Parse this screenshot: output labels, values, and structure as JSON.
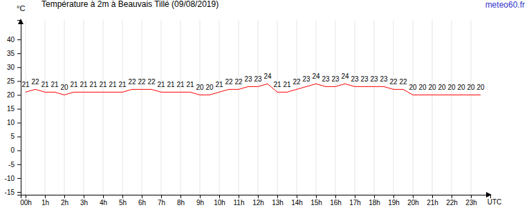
{
  "chart_data": {
    "type": "line",
    "title": "Température à 2m à Beauvais Tillé (09/08/2019)",
    "source": "meteo60.fr",
    "y_label": "°C",
    "x_label": "UTC",
    "x": [
      0,
      0.5,
      1,
      1.5,
      2,
      2.5,
      3,
      3.5,
      4,
      4.5,
      5,
      5.5,
      6,
      6.5,
      7,
      7.5,
      8,
      8.5,
      9,
      9.5,
      10,
      10.5,
      11,
      11.5,
      12,
      12.5,
      13,
      13.5,
      14,
      14.5,
      15,
      15.5,
      16,
      16.5,
      17,
      17.5,
      18,
      18.5,
      19,
      19.5,
      20,
      20.5,
      21,
      21.5,
      22,
      22.5,
      23,
      23.5
    ],
    "values": [
      21,
      22,
      21,
      21,
      20,
      21,
      21,
      21,
      21,
      21,
      21,
      22,
      22,
      22,
      21,
      21,
      21,
      21,
      20,
      20,
      21,
      22,
      22,
      23,
      23,
      24,
      21,
      21,
      22,
      23,
      24,
      23,
      23,
      24,
      23,
      23,
      23,
      23,
      22,
      22,
      20,
      20,
      20,
      20,
      20,
      20,
      20,
      20
    ],
    "color": "#ff0000",
    "xlim": [
      -0.25,
      24
    ],
    "xticks": [
      {
        "value": 0,
        "label": "00h"
      },
      {
        "value": 1,
        "label": "1h"
      },
      {
        "value": 2,
        "label": "2h"
      },
      {
        "value": 3,
        "label": "3h"
      },
      {
        "value": 4,
        "label": "4h"
      },
      {
        "value": 5,
        "label": "5h"
      },
      {
        "value": 6,
        "label": "6h"
      },
      {
        "value": 7,
        "label": "7h"
      },
      {
        "value": 8,
        "label": "8h"
      },
      {
        "value": 9,
        "label": "9h"
      },
      {
        "value": 10,
        "label": "10h"
      },
      {
        "value": 11,
        "label": "11h"
      },
      {
        "value": 12,
        "label": "12h"
      },
      {
        "value": 13,
        "label": "13h"
      },
      {
        "value": 14,
        "label": "14h"
      },
      {
        "value": 15,
        "label": "15h"
      },
      {
        "value": 16,
        "label": "16h"
      },
      {
        "value": 17,
        "label": "17h"
      },
      {
        "value": 18,
        "label": "18h"
      },
      {
        "value": 19,
        "label": "19h"
      },
      {
        "value": 20,
        "label": "20h"
      },
      {
        "value": 21,
        "label": "21h"
      },
      {
        "value": 22,
        "label": "22h"
      },
      {
        "value": 23,
        "label": "23h"
      }
    ],
    "ylim": [
      -16,
      47
    ],
    "yticks": [
      -15,
      -10,
      -5,
      0,
      5,
      10,
      15,
      20,
      25,
      30,
      35,
      40
    ],
    "grid": true,
    "data_labels": true
  }
}
